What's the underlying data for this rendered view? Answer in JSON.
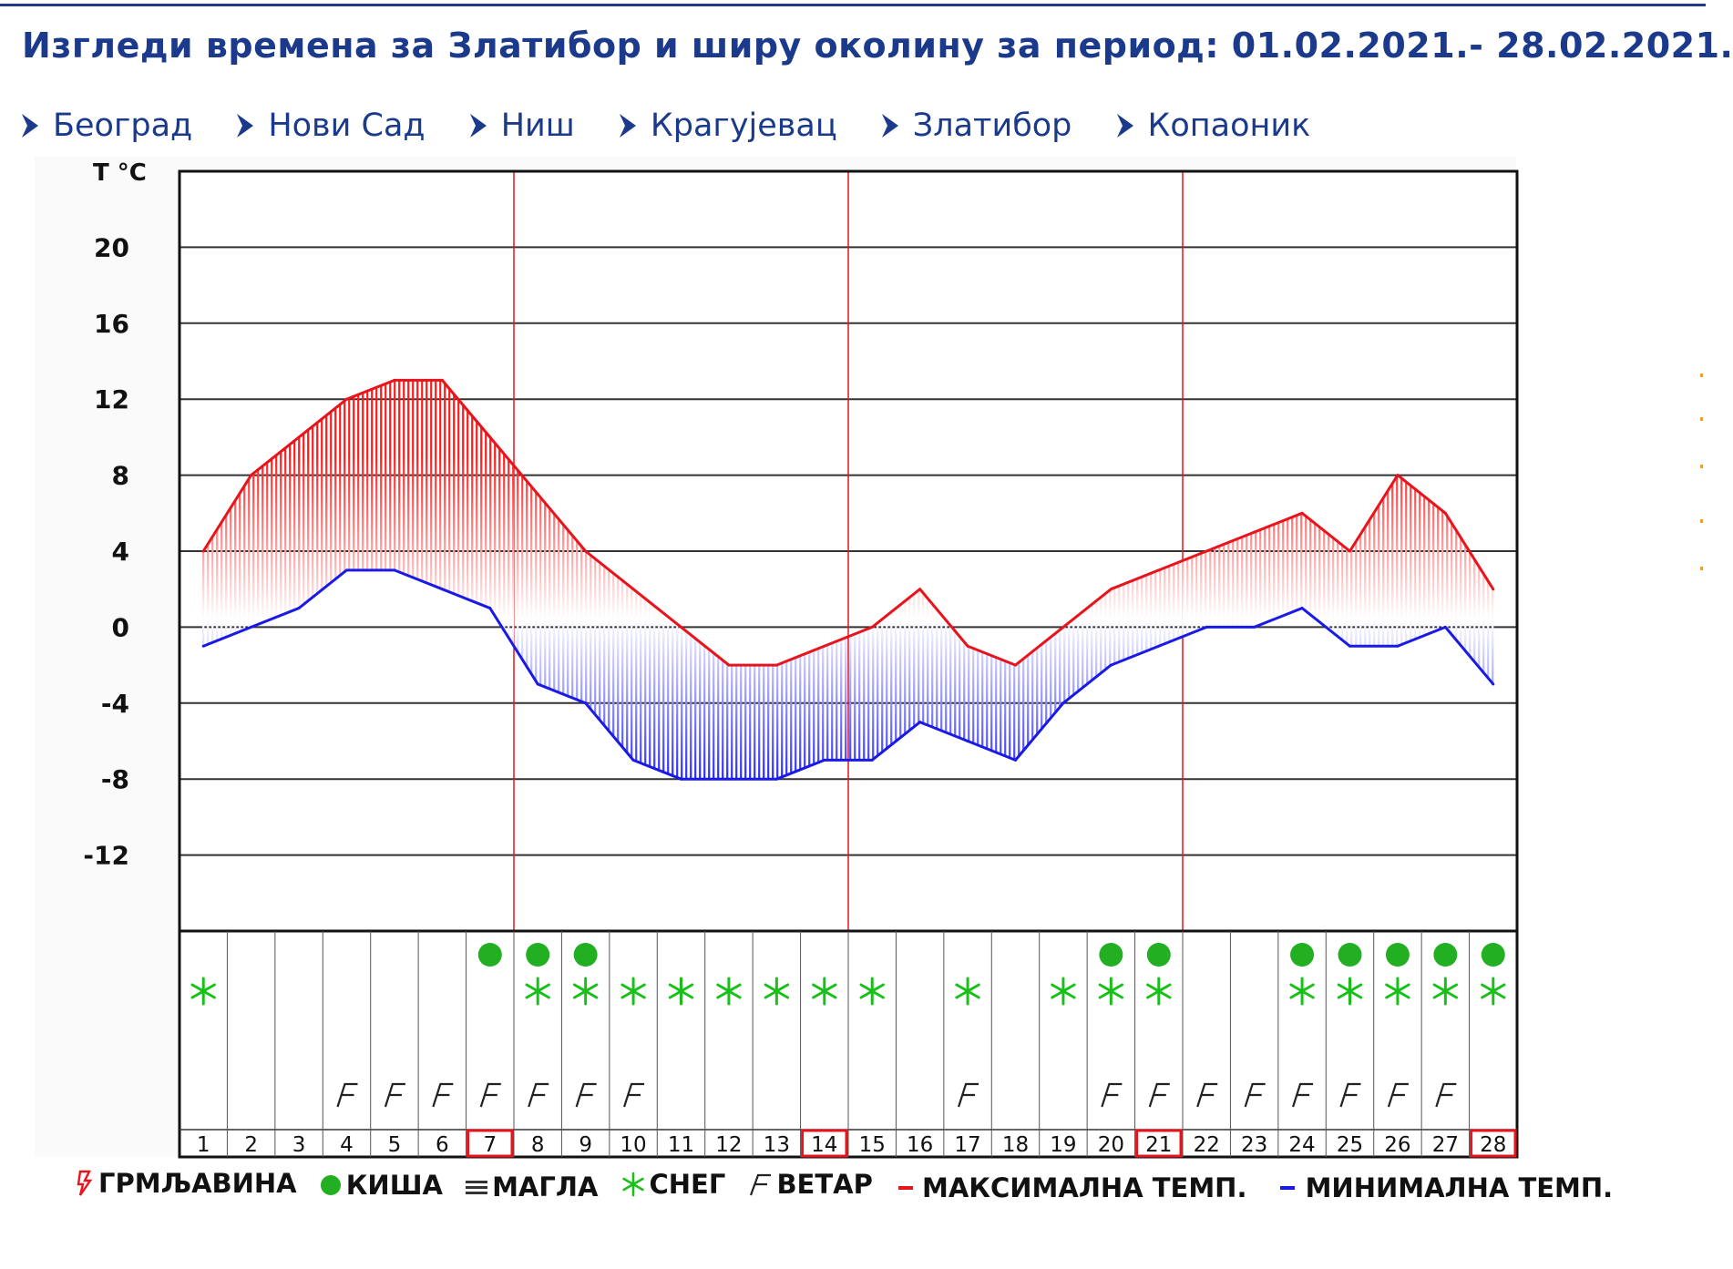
{
  "page": {
    "title": "Изгледи времена за Златибор и ширу околину за период: 01.02.2021.- 28.02.2021."
  },
  "nav": {
    "items": [
      {
        "label": "Београд"
      },
      {
        "label": "Нови Сад"
      },
      {
        "label": "Ниш"
      },
      {
        "label": "Крагујевац"
      },
      {
        "label": "Златибор"
      },
      {
        "label": "Копаоник"
      }
    ]
  },
  "colors": {
    "title": "#1b3a8c",
    "max_line": "#e8141c",
    "min_line": "#1a1ae6",
    "week_marker": "#e8141c",
    "grid": "#333333",
    "rain": "#22b022",
    "snow": "#19c019"
  },
  "chart_data": {
    "type": "line",
    "title": "",
    "ylabel": "T °C",
    "xlabel": "",
    "ylim": [
      -16,
      24
    ],
    "yticks": [
      20,
      16,
      12,
      8,
      4,
      0,
      -4,
      -8,
      -12
    ],
    "categories": [
      "1",
      "2",
      "3",
      "4",
      "5",
      "6",
      "7",
      "8",
      "9",
      "10",
      "11",
      "12",
      "13",
      "14",
      "15",
      "16",
      "17",
      "18",
      "19",
      "20",
      "21",
      "22",
      "23",
      "24",
      "25",
      "26",
      "27",
      "28"
    ],
    "highlighted_days": [
      "7",
      "14",
      "21",
      "28"
    ],
    "grid": true,
    "series": [
      {
        "name": "МАКСИМАЛНА ТЕМП.",
        "color": "#e8141c",
        "values": [
          4,
          8,
          10,
          12,
          13,
          13,
          10,
          7,
          4,
          2,
          0,
          -2,
          -2,
          -1,
          0,
          2,
          -1,
          -2,
          0,
          2,
          3,
          4,
          5,
          6,
          4,
          8,
          6,
          2
        ]
      },
      {
        "name": "МИНИМАЛНА ТЕМП.",
        "color": "#1a1ae6",
        "values": [
          -1,
          0,
          1,
          3,
          3,
          2,
          1,
          -3,
          -4,
          -7,
          -8,
          -8,
          -8,
          -7,
          -7,
          -5,
          -6,
          -7,
          -4,
          -2,
          -1,
          0,
          0,
          1,
          -1,
          -1,
          0,
          -3
        ]
      }
    ],
    "weather": [
      {
        "day": "1",
        "rain": false,
        "snow": true,
        "wind": false
      },
      {
        "day": "2",
        "rain": false,
        "snow": false,
        "wind": false
      },
      {
        "day": "3",
        "rain": false,
        "snow": false,
        "wind": false
      },
      {
        "day": "4",
        "rain": false,
        "snow": false,
        "wind": true
      },
      {
        "day": "5",
        "rain": false,
        "snow": false,
        "wind": true
      },
      {
        "day": "6",
        "rain": false,
        "snow": false,
        "wind": true
      },
      {
        "day": "7",
        "rain": true,
        "snow": false,
        "wind": true
      },
      {
        "day": "8",
        "rain": true,
        "snow": true,
        "wind": true
      },
      {
        "day": "9",
        "rain": true,
        "snow": true,
        "wind": true
      },
      {
        "day": "10",
        "rain": false,
        "snow": true,
        "wind": true
      },
      {
        "day": "11",
        "rain": false,
        "snow": true,
        "wind": false
      },
      {
        "day": "12",
        "rain": false,
        "snow": true,
        "wind": false
      },
      {
        "day": "13",
        "rain": false,
        "snow": true,
        "wind": false
      },
      {
        "day": "14",
        "rain": false,
        "snow": true,
        "wind": false
      },
      {
        "day": "15",
        "rain": false,
        "snow": true,
        "wind": false
      },
      {
        "day": "16",
        "rain": false,
        "snow": false,
        "wind": false
      },
      {
        "day": "17",
        "rain": false,
        "snow": true,
        "wind": true
      },
      {
        "day": "18",
        "rain": false,
        "snow": false,
        "wind": false
      },
      {
        "day": "19",
        "rain": false,
        "snow": true,
        "wind": false
      },
      {
        "day": "20",
        "rain": true,
        "snow": true,
        "wind": true
      },
      {
        "day": "21",
        "rain": true,
        "snow": true,
        "wind": true
      },
      {
        "day": "22",
        "rain": false,
        "snow": false,
        "wind": true
      },
      {
        "day": "23",
        "rain": false,
        "snow": false,
        "wind": true
      },
      {
        "day": "24",
        "rain": true,
        "snow": true,
        "wind": true
      },
      {
        "day": "25",
        "rain": true,
        "snow": true,
        "wind": true
      },
      {
        "day": "26",
        "rain": true,
        "snow": true,
        "wind": true
      },
      {
        "day": "27",
        "rain": true,
        "snow": true,
        "wind": true
      },
      {
        "day": "28",
        "rain": true,
        "snow": true,
        "wind": false
      }
    ]
  },
  "legend": {
    "items": [
      {
        "key": "thunder",
        "icon": "thunder-icon",
        "label": "ГРМЉАВИНА"
      },
      {
        "key": "rain",
        "icon": "rain-dot-icon",
        "label": "КИША"
      },
      {
        "key": "fog",
        "icon": "fog-lines-icon",
        "label": "МАГЛА"
      },
      {
        "key": "snow",
        "icon": "snowflake-icon",
        "label": "СНЕГ"
      },
      {
        "key": "wind",
        "icon": "wind-flag-icon",
        "label": "ВЕТАР"
      },
      {
        "key": "max",
        "icon": "red-dash-icon",
        "label": "МАКСИМАЛНА ТЕМП."
      },
      {
        "key": "min",
        "icon": "blue-dash-icon",
        "label": "МИНИМАЛНА ТЕМП."
      }
    ]
  }
}
